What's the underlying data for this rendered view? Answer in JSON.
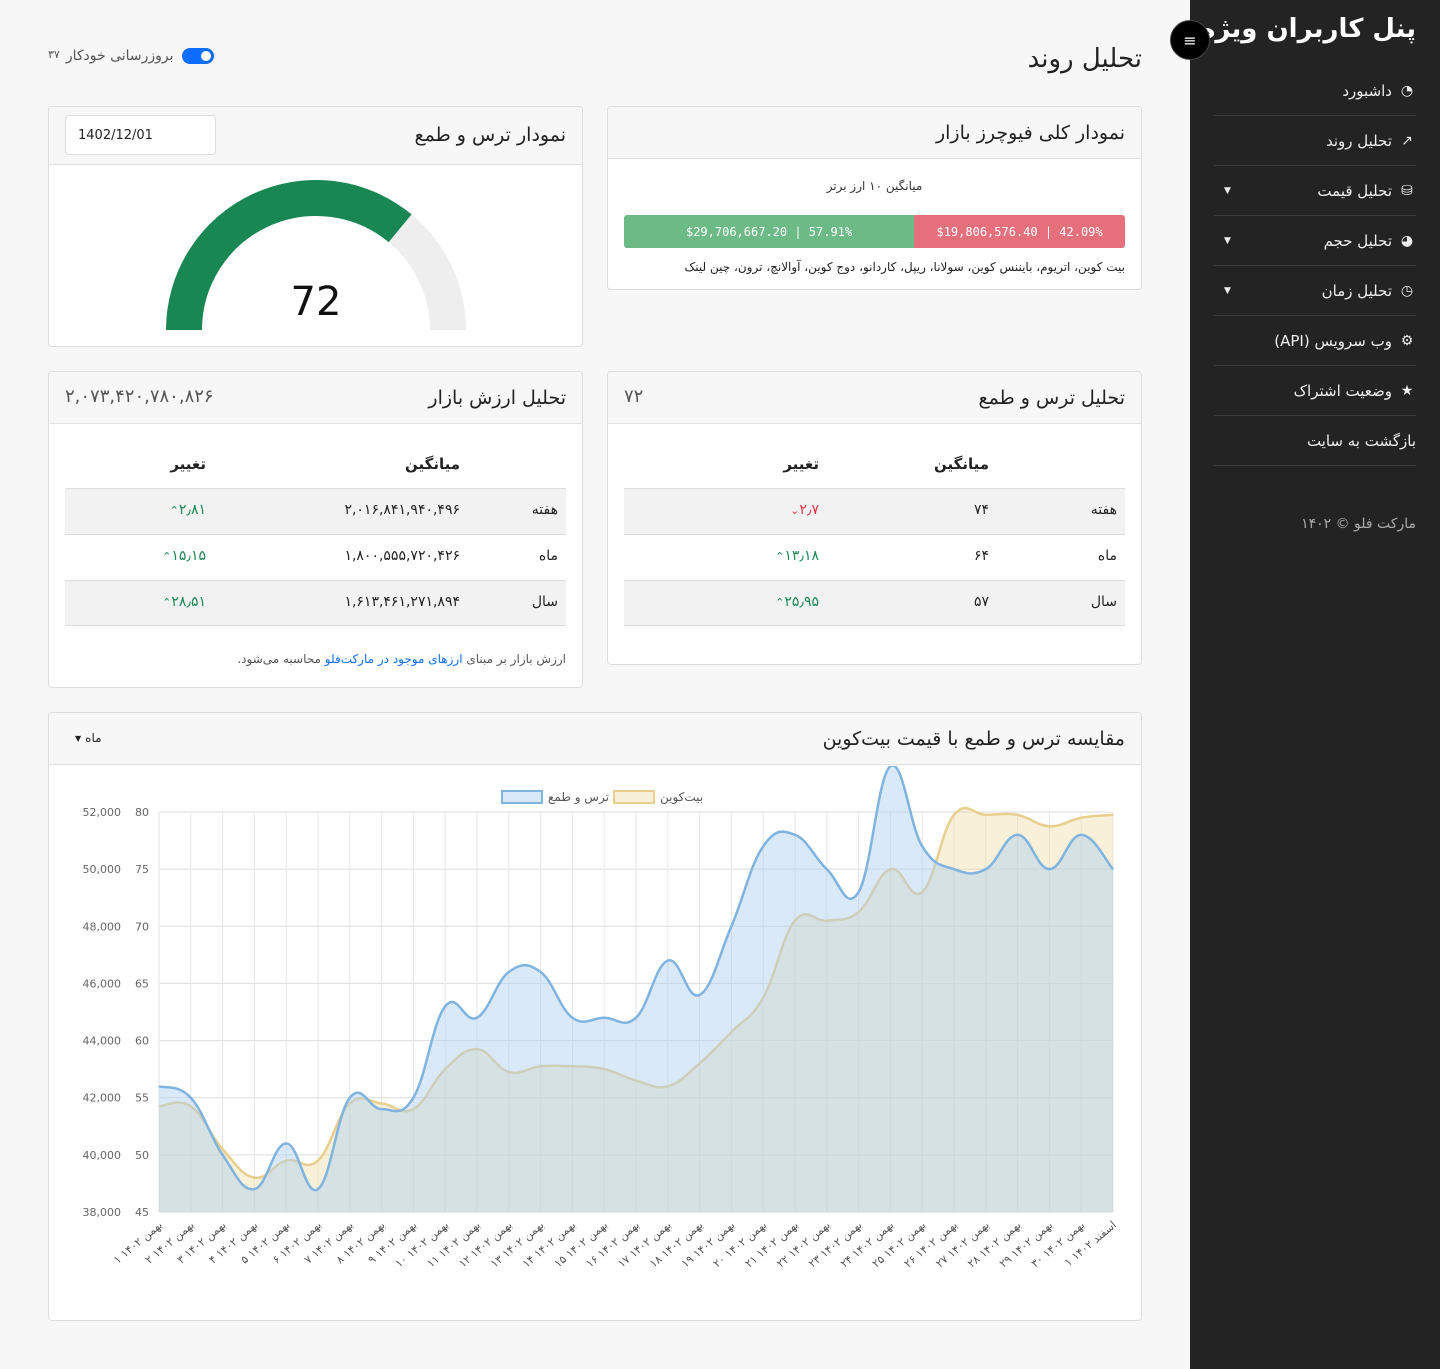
{
  "sidebar": {
    "title": "پنل کاربران ویژه",
    "menu_icon": "≡",
    "items": [
      {
        "label": "داشبورد",
        "icon": "tachometer-icon",
        "glyph": "◔",
        "caret": ""
      },
      {
        "label": "تحلیل روند",
        "icon": "trend-icon",
        "glyph": "↗",
        "caret": ""
      },
      {
        "label": "تحلیل قیمت",
        "icon": "coins-icon",
        "glyph": "⛁",
        "caret": "▼"
      },
      {
        "label": "تحلیل حجم",
        "icon": "pie-chart-icon",
        "glyph": "◕",
        "caret": "▼"
      },
      {
        "label": "تحلیل زمان",
        "icon": "clock-icon",
        "glyph": "◷",
        "caret": "▼"
      },
      {
        "label": "وب سرویس (API)",
        "icon": "gears-icon",
        "glyph": "⚙",
        "caret": ""
      },
      {
        "label": "وضعیت اشتراک",
        "icon": "star-icon",
        "glyph": "★",
        "caret": ""
      },
      {
        "label": "بازگشت به سایت",
        "icon": "",
        "glyph": "",
        "caret": ""
      }
    ],
    "footer": "مارکت فلو © ۱۴۰۲"
  },
  "header": {
    "title": "تحلیل روند",
    "auto_update_label": "بروزرسانی خودکار",
    "auto_update_count": "۳۷",
    "auto_update_on": true
  },
  "futures_card": {
    "title": "نمودار کلی فیوچرز بازار",
    "subtitle": "میانگین ۱۰ ارز برتر",
    "long_text": "$29,706,667.20 | 57.91%",
    "long_percent": 57.91,
    "short_text": "$19,806,576.40 | 42.09%",
    "short_percent": 42.09,
    "coins": "بیت کوین، اتریوم، بایننس کوین، سولانا، ریپل، کاردانو، دوج کوین، آوالانچ، ترون، چین لینک",
    "long_color": "#6cba86",
    "short_color": "#e5707b"
  },
  "gauge_card": {
    "title": "نمودار ترس و طمع",
    "date": "1402/12/01",
    "value": "72",
    "value_fraction": 0.72,
    "fill_color": "#198754",
    "track_color": "#eeeeee"
  },
  "fg_analysis": {
    "title": "تحلیل ترس و طمع",
    "current": "۷۲",
    "col_avg": "میانگین",
    "col_change": "تغییر",
    "rows": [
      {
        "period": "هفته",
        "avg": "۷۴",
        "change": "۲٫۷",
        "dir": "down",
        "arrow": "⌄"
      },
      {
        "period": "ماه",
        "avg": "۶۴",
        "change": "۱۳٫۱۸",
        "dir": "up",
        "arrow": "⌃"
      },
      {
        "period": "سال",
        "avg": "۵۷",
        "change": "۲۵٫۹۵",
        "dir": "up",
        "arrow": "⌃"
      }
    ]
  },
  "mcap_analysis": {
    "title": "تحلیل ارزش بازار",
    "current": "۲,۰۷۳,۴۲۰,۷۸۰,۸۲۶",
    "col_avg": "میانگین",
    "col_change": "تغییر",
    "rows": [
      {
        "period": "هفته",
        "avg": "۲,۰۱۶,۸۴۱,۹۴۰,۴۹۶",
        "change": "۲٫۸۱",
        "dir": "up",
        "arrow": "⌃"
      },
      {
        "period": "ماه",
        "avg": "۱,۸۰۰,۵۵۵,۷۲۰,۴۲۶",
        "change": "۱۵٫۱۵",
        "dir": "up",
        "arrow": "⌃"
      },
      {
        "period": "سال",
        "avg": "۱,۶۱۳,۴۶۱,۲۷۱,۸۹۴",
        "change": "۲۸٫۵۱",
        "dir": "up",
        "arrow": "⌃"
      }
    ],
    "note_pre": "ارزش بازار بر مبنای",
    "note_link": "ارزهای موجود در مارکت‌فلو",
    "note_post": "محاسبه می‌شود."
  },
  "compare_card": {
    "title": "مقایسه ترس و طمع با قیمت بیت‌کوین",
    "period_label": "ماه"
  },
  "chart_data": {
    "type": "area",
    "x": [
      "۱ بهمن ۱۴۰۲",
      "۲ بهمن ۱۴۰۲",
      "۳ بهمن ۱۴۰۲",
      "۴ بهمن ۱۴۰۲",
      "۵ بهمن ۱۴۰۲",
      "۶ بهمن ۱۴۰۲",
      "۷ بهمن ۱۴۰۲",
      "۸ بهمن ۱۴۰۲",
      "۹ بهمن ۱۴۰۲",
      "۱۰ بهمن ۱۴۰۲",
      "۱۱ بهمن ۱۴۰۲",
      "۱۲ بهمن ۱۴۰۲",
      "۱۳ بهمن ۱۴۰۲",
      "۱۴ بهمن ۱۴۰۲",
      "۱۵ بهمن ۱۴۰۲",
      "۱۶ بهمن ۱۴۰۲",
      "۱۷ بهمن ۱۴۰۲",
      "۱۸ بهمن ۱۴۰۲",
      "۱۹ بهمن ۱۴۰۲",
      "۲۰ بهمن ۱۴۰۲",
      "۲۱ بهمن ۱۴۰۲",
      "۲۲ بهمن ۱۴۰۲",
      "۲۳ بهمن ۱۴۰۲",
      "۲۴ بهمن ۱۴۰۲",
      "۲۵ بهمن ۱۴۰۲",
      "۲۶ بهمن ۱۴۰۲",
      "۲۷ بهمن ۱۴۰۲",
      "۲۸ بهمن ۱۴۰۲",
      "۲۹ بهمن ۱۴۰۲",
      "۳۰ بهمن ۱۴۰۲",
      "۱ اسفند ۱۴۰۲"
    ],
    "series": [
      {
        "name": "ترس و طمع",
        "axis": "left",
        "color": "#7fb3e0",
        "fill": "rgba(173,206,240,0.45)",
        "values": [
          56,
          55,
          50,
          47,
          51,
          47,
          55,
          54,
          55,
          63,
          62,
          66,
          66,
          62,
          62,
          62,
          67,
          64,
          70,
          77,
          78,
          75,
          73,
          84,
          77,
          75,
          75,
          78,
          75,
          78,
          75
        ]
      },
      {
        "name": "بیت‌کوین",
        "axis": "right",
        "color": "#e8cf8e",
        "fill": "rgba(240,222,170,0.45)",
        "values": [
          41700,
          41700,
          40200,
          39200,
          39800,
          39800,
          41800,
          41800,
          41600,
          43000,
          43700,
          42900,
          43100,
          43100,
          43000,
          42600,
          42400,
          43200,
          44300,
          45500,
          48200,
          48200,
          48500,
          50000,
          49200,
          51900,
          51900,
          51900,
          51500,
          51800,
          51900
        ]
      }
    ],
    "ylim_left": [
      45,
      80
    ],
    "yticks_left": [
      45,
      50,
      55,
      60,
      65,
      70,
      75,
      80
    ],
    "ylim_right": [
      38000,
      52000
    ],
    "yticks_right": [
      "38,000",
      "40,000",
      "42,000",
      "44,000",
      "46,000",
      "48,000",
      "50,000",
      "52,000"
    ],
    "legend_position": "top",
    "grid": true
  }
}
